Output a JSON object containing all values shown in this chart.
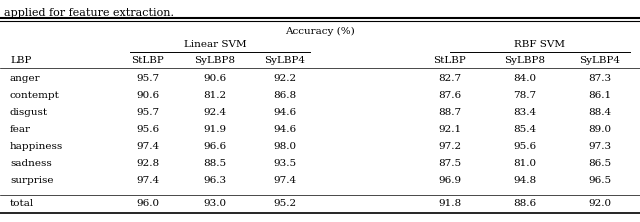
{
  "caption": "applied for feature extraction.",
  "header_top": "Accuracy (%)",
  "group1_label": "Linear SVM",
  "group2_label": "RBF SVM",
  "col_header": [
    "LBP",
    "StLBP",
    "SyLBP8",
    "SyLBP4",
    "",
    "StLBP",
    "SyLBP8",
    "SyLBP4"
  ],
  "rows": [
    [
      "anger",
      "95.7",
      "90.6",
      "92.2",
      "",
      "82.7",
      "84.0",
      "87.3"
    ],
    [
      "contempt",
      "90.6",
      "81.2",
      "86.8",
      "",
      "87.6",
      "78.7",
      "86.1"
    ],
    [
      "disgust",
      "95.7",
      "92.4",
      "94.6",
      "",
      "88.7",
      "83.4",
      "88.4"
    ],
    [
      "fear",
      "95.6",
      "91.9",
      "94.6",
      "",
      "92.1",
      "85.4",
      "89.0"
    ],
    [
      "happiness",
      "97.4",
      "96.6",
      "98.0",
      "",
      "97.2",
      "95.6",
      "97.3"
    ],
    [
      "sadness",
      "92.8",
      "88.5",
      "93.5",
      "",
      "87.5",
      "81.0",
      "86.5"
    ],
    [
      "surprise",
      "97.4",
      "96.3",
      "97.4",
      "",
      "96.9",
      "94.8",
      "96.5"
    ]
  ],
  "total_row": [
    "total",
    "96.0",
    "93.0",
    "95.2",
    "",
    "91.8",
    "88.6",
    "92.0"
  ],
  "bg_color": "#ffffff",
  "text_color": "#000000",
  "font_size": 7.5,
  "caption_font_size": 8.0
}
